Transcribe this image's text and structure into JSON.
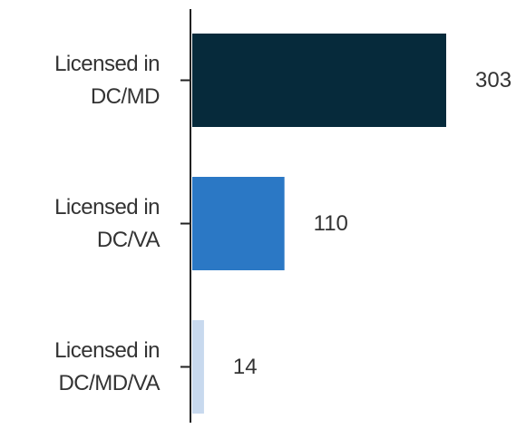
{
  "chart_data": {
    "type": "bar",
    "orientation": "horizontal",
    "categories": [
      "Licensed in DC/MD",
      "Licensed in DC/VA",
      "Licensed in DC/MD/VA"
    ],
    "values": [
      303,
      110,
      14
    ],
    "colors": [
      "#062a3b",
      "#2b78c5",
      "#c8d9ee"
    ]
  }
}
